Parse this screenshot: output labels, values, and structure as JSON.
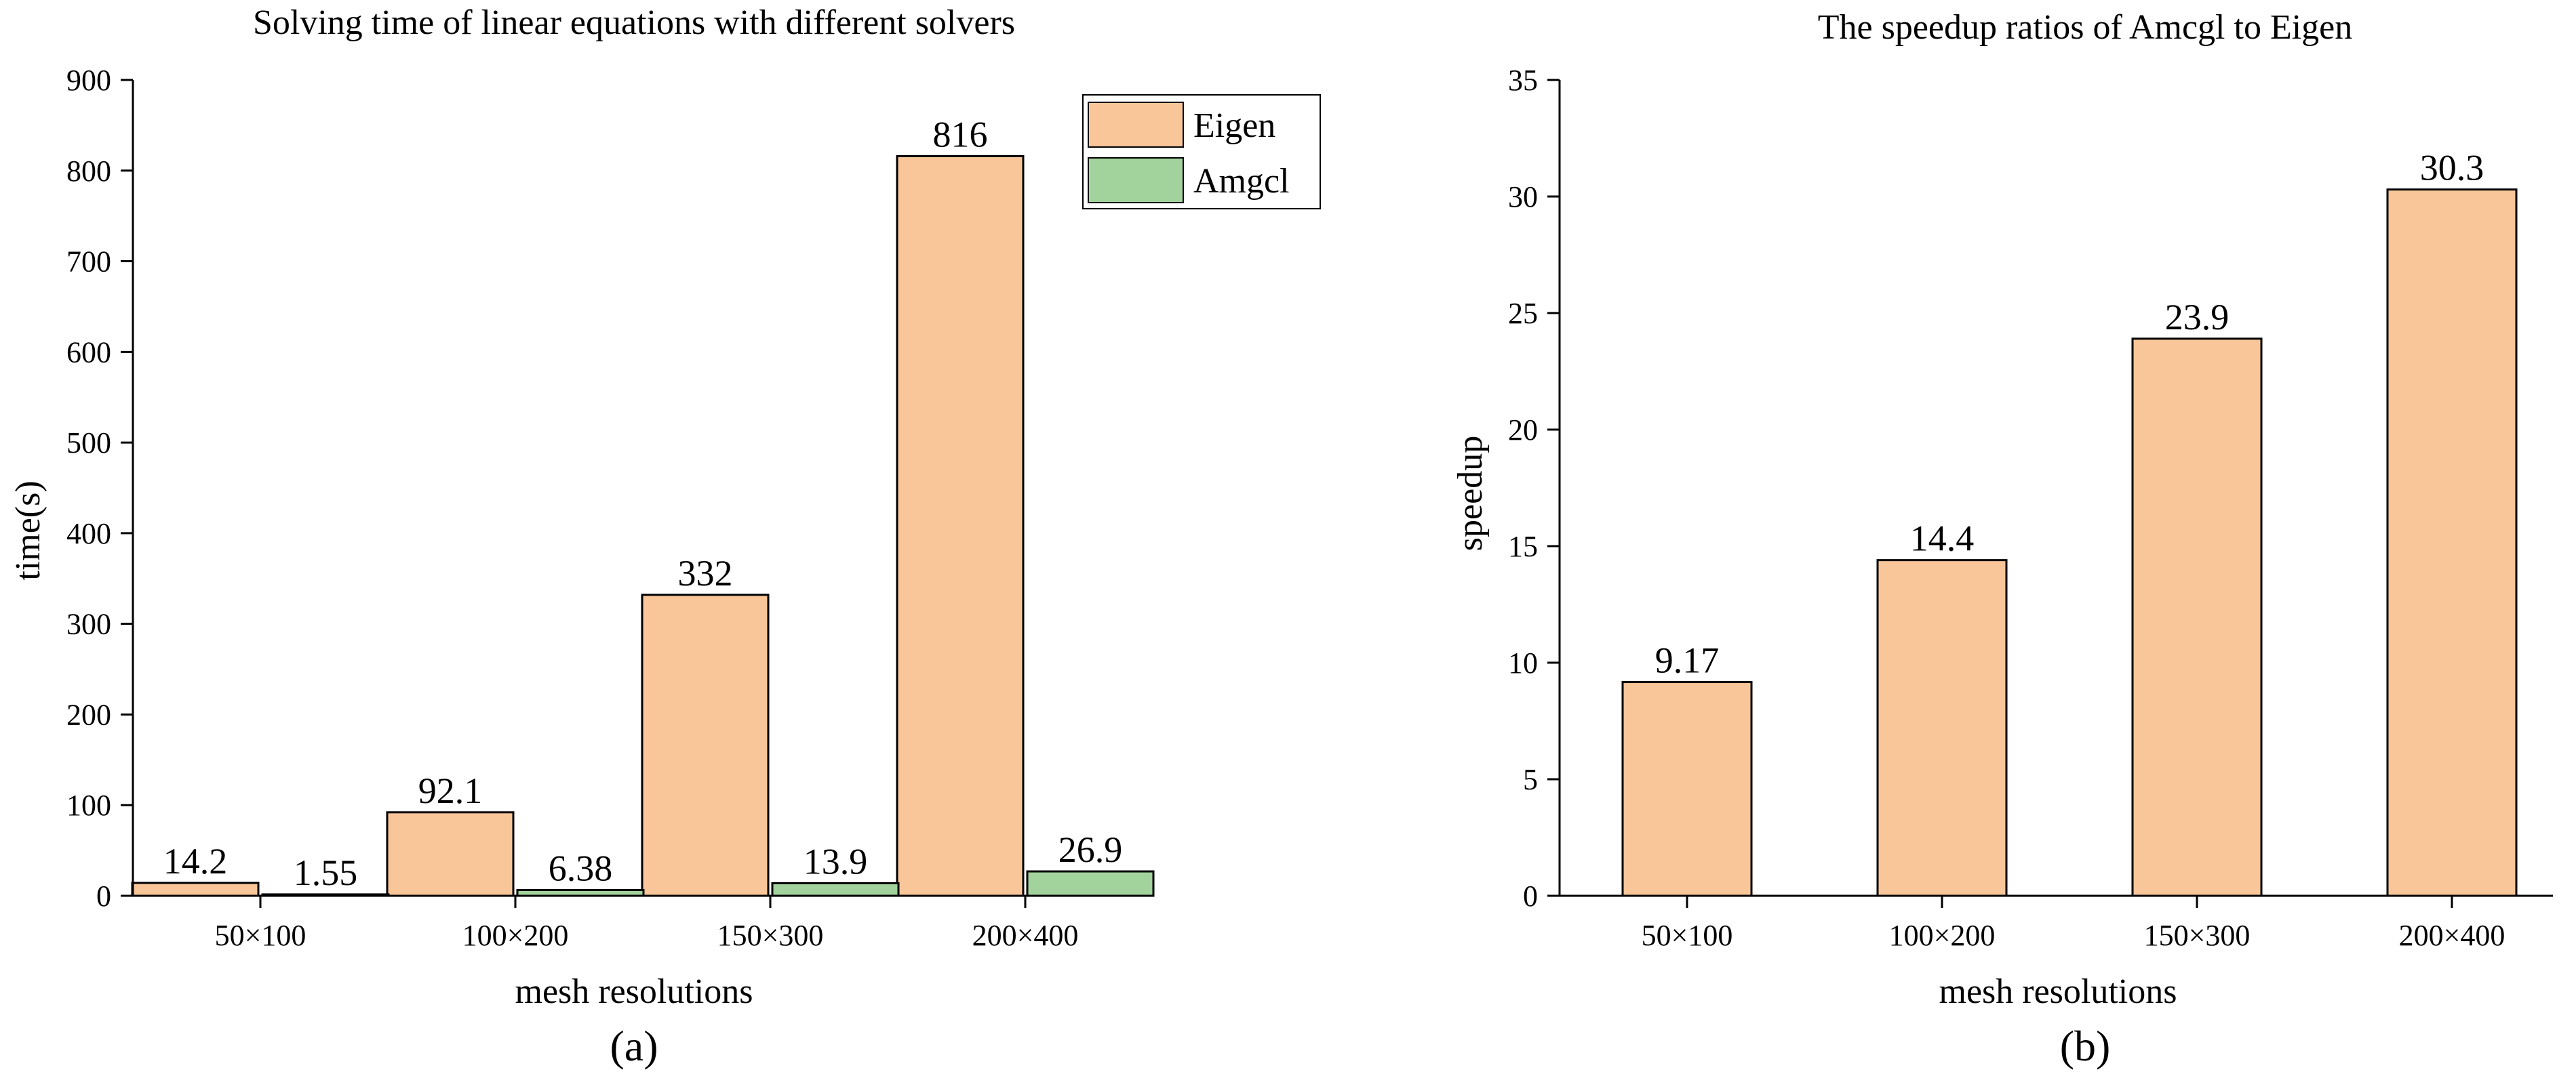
{
  "chart_data": [
    {
      "type": "bar",
      "panel_label": "(a)",
      "title": "Solving time of linear equations with different solvers",
      "xlabel": "mesh resolutions",
      "ylabel": "time(s)",
      "categories": [
        "50×100",
        "100×200",
        "150×300",
        "200×400"
      ],
      "series": [
        {
          "name": "Eigen",
          "values": [
            14.2,
            92.1,
            332,
            816
          ],
          "labels": [
            "14.2",
            "92.1",
            "332",
            "816"
          ],
          "color": "#f9c69a"
        },
        {
          "name": "Amgcl",
          "values": [
            1.55,
            6.38,
            13.9,
            26.9
          ],
          "labels": [
            "1.55",
            "6.38",
            "13.9",
            "26.9"
          ],
          "color": "#a2d39c"
        }
      ],
      "ylim": [
        0,
        900
      ],
      "yticks": [
        0,
        100,
        200,
        300,
        400,
        500,
        600,
        700,
        800,
        900
      ],
      "grid": false,
      "legend": "top-right"
    },
    {
      "type": "bar",
      "panel_label": "(b)",
      "title": "The speedup ratios of Amcgl to Eigen",
      "xlabel": "mesh resolutions",
      "ylabel": "speedup",
      "categories": [
        "50×100",
        "100×200",
        "150×300",
        "200×400"
      ],
      "series": [
        {
          "name": "speedup",
          "values": [
            9.17,
            14.4,
            23.9,
            30.3
          ],
          "labels": [
            "9.17",
            "14.4",
            "23.9",
            "30.3"
          ],
          "color": "#f9c69a"
        }
      ],
      "ylim": [
        0,
        35
      ],
      "yticks": [
        0,
        5,
        10,
        15,
        20,
        25,
        30,
        35
      ],
      "grid": false,
      "legend": "none"
    }
  ]
}
